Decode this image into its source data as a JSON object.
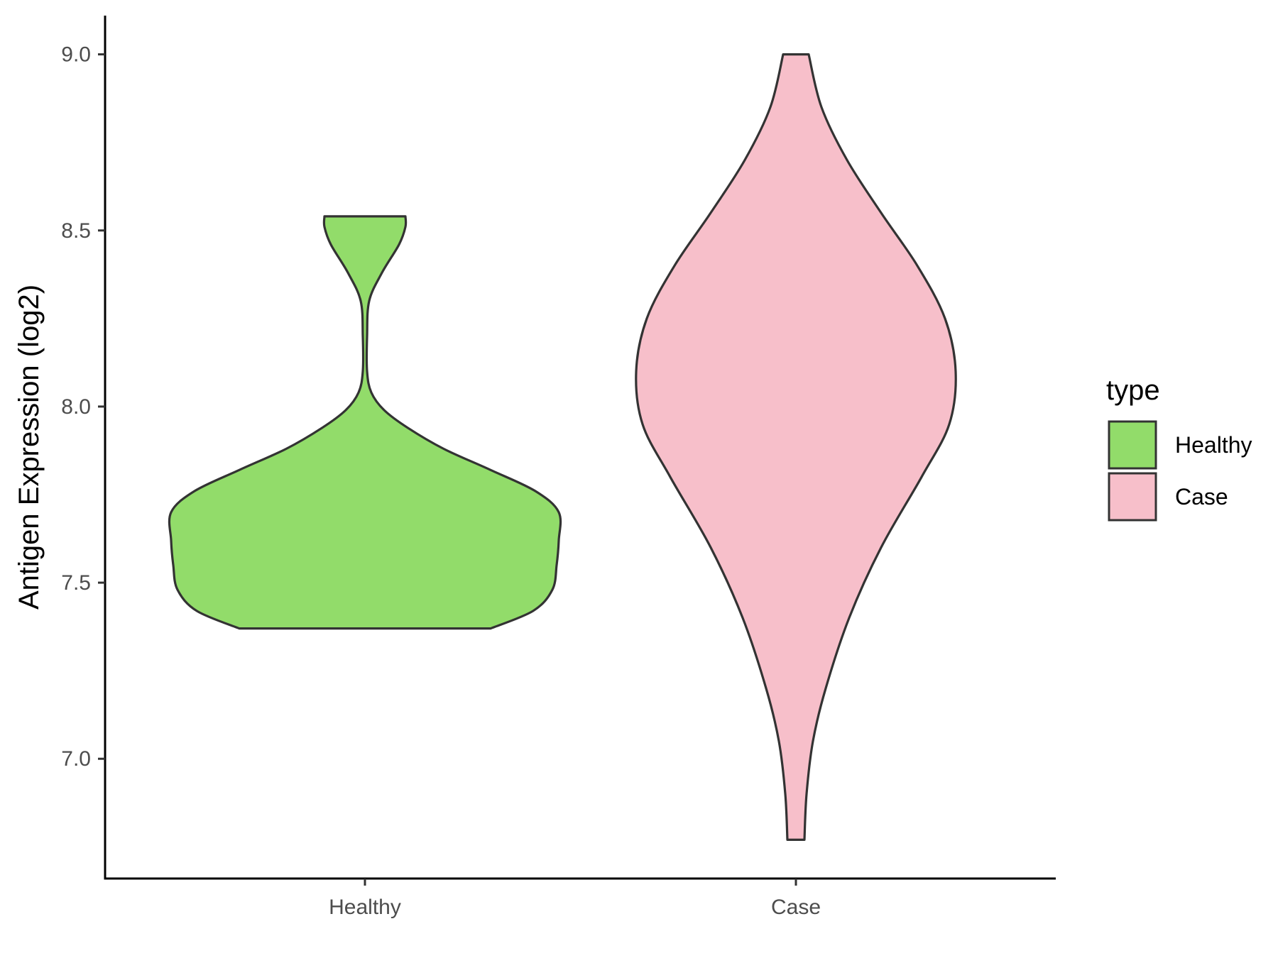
{
  "chart_data": {
    "type": "violin",
    "title": "",
    "xlabel": "",
    "ylabel": "Antigen Expression (log2)",
    "ylim": [
      6.66,
      9.11
    ],
    "y_ticks": [
      "7.0",
      "7.5",
      "8.0",
      "8.5",
      "9.0"
    ],
    "y_tick_values": [
      7.0,
      7.5,
      8.0,
      8.5,
      9.0
    ],
    "categories": [
      "Healthy",
      "Case"
    ],
    "grid": false,
    "legend": {
      "title": "type",
      "position": "right",
      "entries": [
        "Healthy",
        "Case"
      ]
    },
    "series": [
      {
        "name": "Healthy",
        "color": "#92dc6a",
        "min": 7.37,
        "max": 8.54,
        "density_profile": [
          [
            7.37,
            0.59
          ],
          [
            7.42,
            0.79
          ],
          [
            7.48,
            0.88
          ],
          [
            7.55,
            0.9
          ],
          [
            7.62,
            0.91
          ],
          [
            7.7,
            0.91
          ],
          [
            7.76,
            0.8
          ],
          [
            7.82,
            0.59
          ],
          [
            7.88,
            0.37
          ],
          [
            7.94,
            0.2
          ],
          [
            7.99,
            0.09
          ],
          [
            8.04,
            0.03
          ],
          [
            8.1,
            0.01
          ],
          [
            8.2,
            0.01
          ],
          [
            8.3,
            0.02
          ],
          [
            8.38,
            0.08
          ],
          [
            8.46,
            0.16
          ],
          [
            8.51,
            0.19
          ],
          [
            8.54,
            0.19
          ]
        ]
      },
      {
        "name": "Case",
        "color": "#f7bfca",
        "min": 6.77,
        "max": 9.0,
        "density_profile": [
          [
            6.77,
            0.04
          ],
          [
            6.9,
            0.05
          ],
          [
            7.05,
            0.08
          ],
          [
            7.2,
            0.14
          ],
          [
            7.4,
            0.25
          ],
          [
            7.6,
            0.4
          ],
          [
            7.8,
            0.59
          ],
          [
            7.95,
            0.72
          ],
          [
            8.1,
            0.75
          ],
          [
            8.25,
            0.7
          ],
          [
            8.4,
            0.57
          ],
          [
            8.55,
            0.4
          ],
          [
            8.7,
            0.24
          ],
          [
            8.85,
            0.12
          ],
          [
            9.0,
            0.06
          ]
        ]
      }
    ]
  }
}
